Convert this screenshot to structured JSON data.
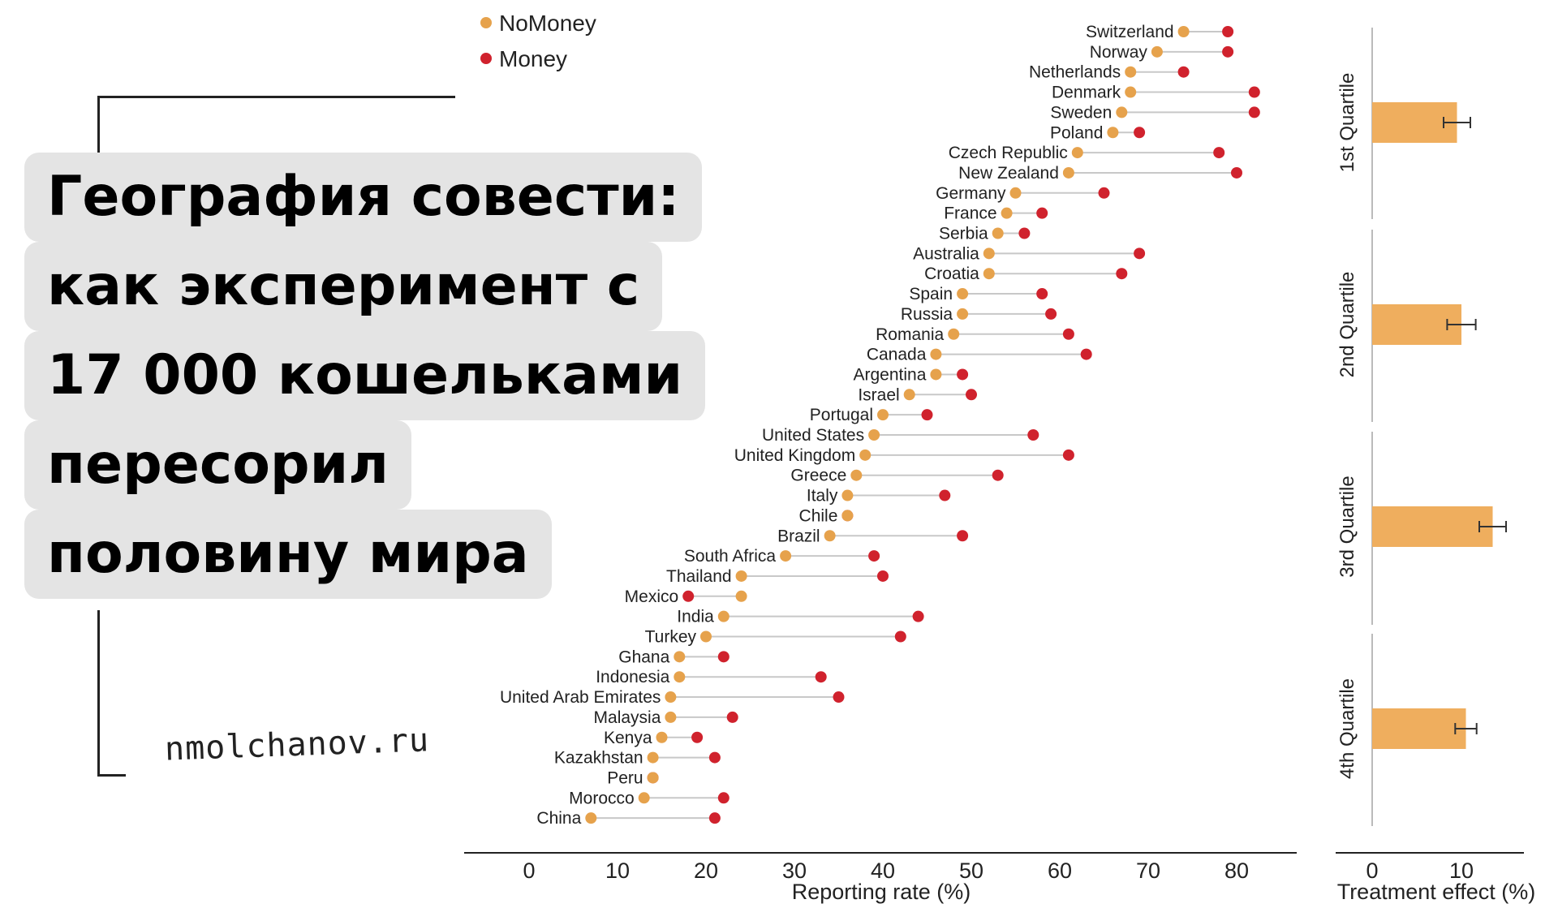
{
  "title_lines": [
    "География совести:",
    "как эксперимент с",
    "17 000 кошельками",
    "пересорил",
    "половину мира"
  ],
  "site": "nmolchanov.ru",
  "colors": {
    "nomoney": "#e6a24c",
    "money": "#d0222d",
    "bar": "#efae5e",
    "connector": "#c8c8c8"
  },
  "chart_data": [
    {
      "type": "dumbbell",
      "legend": [
        "NoMoney",
        "Money"
      ],
      "legend_position": "top-left",
      "xlabel": "Reporting rate (%)",
      "xticks": [
        0,
        10,
        20,
        30,
        40,
        50,
        60,
        70,
        80
      ],
      "xlim": [
        -7,
        87
      ],
      "categories": [
        "Switzerland",
        "Norway",
        "Netherlands",
        "Denmark",
        "Sweden",
        "Poland",
        "Czech Republic",
        "New Zealand",
        "Germany",
        "France",
        "Serbia",
        "Australia",
        "Croatia",
        "Spain",
        "Russia",
        "Romania",
        "Canada",
        "Argentina",
        "Israel",
        "Portugal",
        "United States",
        "United Kingdom",
        "Greece",
        "Italy",
        "Chile",
        "Brazil",
        "South Africa",
        "Thailand",
        "Mexico",
        "India",
        "Turkey",
        "Ghana",
        "Indonesia",
        "United Arab Emirates",
        "Malaysia",
        "Kenya",
        "Kazakhstan",
        "Peru",
        "Morocco",
        "China"
      ],
      "series": [
        {
          "name": "NoMoney",
          "values": [
            74,
            71,
            68,
            68,
            67,
            66,
            62,
            61,
            55,
            54,
            53,
            52,
            52,
            49,
            49,
            48,
            46,
            46,
            43,
            40,
            39,
            38,
            37,
            36,
            36,
            34,
            29,
            24,
            24,
            22,
            20,
            17,
            17,
            16,
            16,
            15,
            14,
            14,
            13,
            7
          ]
        },
        {
          "name": "Money",
          "values": [
            79,
            79,
            74,
            82,
            82,
            69,
            78,
            80,
            65,
            58,
            56,
            69,
            67,
            58,
            59,
            61,
            63,
            49,
            50,
            45,
            57,
            61,
            53,
            47,
            36,
            49,
            39,
            40,
            18,
            44,
            42,
            22,
            33,
            35,
            23,
            19,
            21,
            14,
            22,
            21
          ]
        }
      ]
    },
    {
      "type": "bar",
      "orientation": "horizontal",
      "xlabel": "Treatment effect (%)",
      "xticks": [
        0,
        10
      ],
      "xlim": [
        -4,
        17
      ],
      "categories": [
        "1st Quartile",
        "2nd Quartile",
        "3rd Quartile",
        "4th Quartile"
      ],
      "values": [
        9.5,
        10,
        13.5,
        10.5
      ],
      "error": [
        1.5,
        1.6,
        1.5,
        1.2
      ]
    }
  ]
}
